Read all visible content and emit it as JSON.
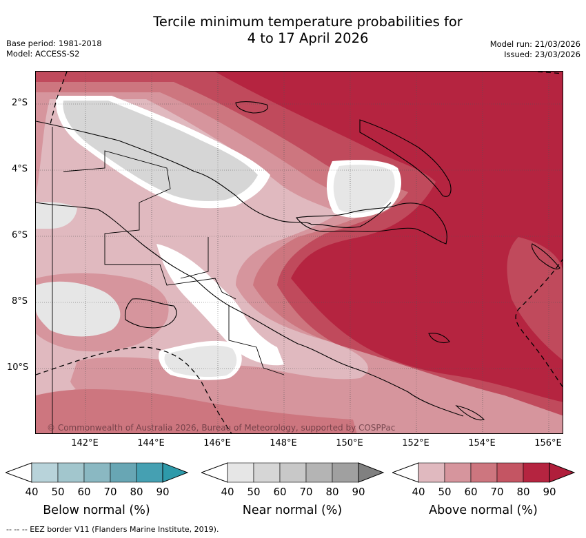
{
  "header": {
    "title_line1": "Tercile minimum temperature probabilities for",
    "title_line2": "4 to 17 April 2026",
    "base_period": "Base period: 1981-2018",
    "model": "Model: ACCESS-S2",
    "model_run": "Model run: 21/03/2026",
    "issued": "Issued: 23/03/2026"
  },
  "map": {
    "lat_labels": [
      "2°S",
      "4°S",
      "6°S",
      "8°S",
      "10°S"
    ],
    "lon_labels": [
      "142°E",
      "144°E",
      "146°E",
      "148°E",
      "150°E",
      "152°E",
      "154°E",
      "156°E"
    ],
    "copyright": "© Commonwealth of Australia 2026, Bureau of Meteorology, supported by COSPPac",
    "palette": {
      "above": [
        "#e0b9bf",
        "#d6959d",
        "#cd767f",
        "#c45563",
        "#b52440",
        "#b01e3b"
      ],
      "near": [
        "#e6e6e6",
        "#d6d6d6",
        "#c8c8c8",
        "#b4b4b4",
        "#a0a0a0",
        "#808080"
      ],
      "below": [
        "#b8d3da",
        "#a2c6cd",
        "#8ab8c2",
        "#68a6b4",
        "#45a0b2",
        "#2e9aaa"
      ]
    }
  },
  "colorbars": [
    {
      "name": "below",
      "title": "Below normal (%)",
      "ticks": [
        "40",
        "50",
        "60",
        "70",
        "80",
        "90"
      ]
    },
    {
      "name": "near",
      "title": "Near normal (%)",
      "ticks": [
        "40",
        "50",
        "60",
        "70",
        "80",
        "90"
      ]
    },
    {
      "name": "above",
      "title": "Above normal (%)",
      "ticks": [
        "40",
        "50",
        "60",
        "70",
        "80",
        "90"
      ]
    }
  ],
  "footer": "-- -- -- EEZ border V11 (Flanders Marine Institute, 2019)."
}
